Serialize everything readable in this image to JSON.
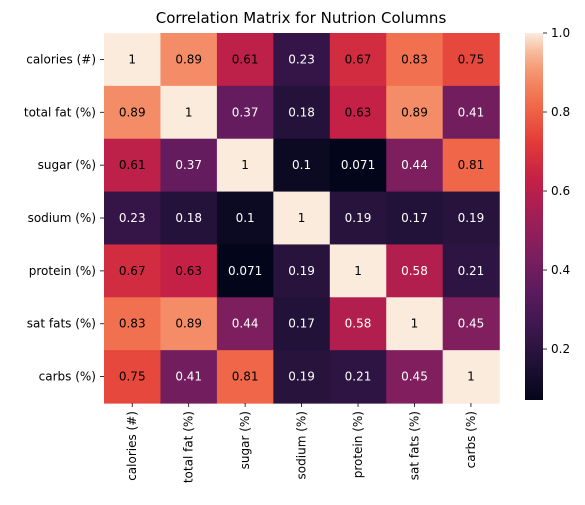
{
  "chart_data": {
    "type": "heatmap",
    "title": "Correlation Matrix for Nutrion Columns",
    "row_labels": [
      "calories (#)",
      "total fat (%)",
      "sugar (%)",
      "sodium (%)",
      "protein (%)",
      "sat fats (%)",
      "carbs (%)"
    ],
    "col_labels": [
      "calories (#)",
      "total fat (%)",
      "sugar (%)",
      "sodium (%)",
      "protein (%)",
      "sat fats (%)",
      "carbs (%)"
    ],
    "values": [
      [
        1,
        0.89,
        0.61,
        0.23,
        0.67,
        0.83,
        0.75
      ],
      [
        0.89,
        1,
        0.37,
        0.18,
        0.63,
        0.89,
        0.41
      ],
      [
        0.61,
        0.37,
        1,
        0.1,
        0.071,
        0.44,
        0.81
      ],
      [
        0.23,
        0.18,
        0.1,
        1,
        0.19,
        0.17,
        0.19
      ],
      [
        0.67,
        0.63,
        0.071,
        0.19,
        1,
        0.58,
        0.21
      ],
      [
        0.83,
        0.89,
        0.44,
        0.17,
        0.58,
        1,
        0.45
      ],
      [
        0.75,
        0.41,
        0.81,
        0.19,
        0.21,
        0.45,
        1
      ]
    ],
    "value_range": [
      0.071,
      1.0
    ],
    "colormap": "rocket",
    "colorbar": {
      "ticks": [
        0.2,
        0.4,
        0.6,
        0.8,
        1.0
      ],
      "tick_labels": [
        "0.2",
        "0.4",
        "0.6",
        "0.8",
        "1.0"
      ]
    },
    "grid": false
  }
}
